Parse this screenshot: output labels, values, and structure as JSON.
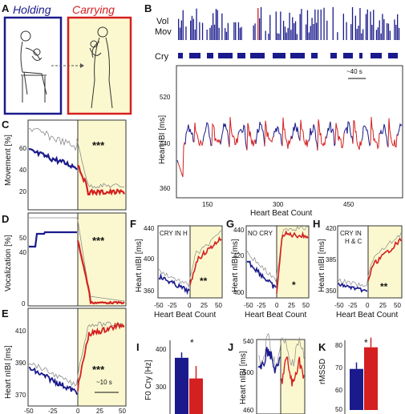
{
  "panels": {
    "A": {
      "letter": "A",
      "title_left": "Holding",
      "title_right": "Carrying"
    },
    "B": {
      "letter": "B",
      "label_vol": "Vol",
      "label_mov": "Mov",
      "label_cry": "Cry",
      "scale": "~40 s",
      "ylabel": "Heart IBI [ms]",
      "xlabel": "Heart Beat Count",
      "yticks": [
        "520",
        "440",
        "360"
      ],
      "xticks": [
        "150",
        "300",
        "450"
      ]
    },
    "C": {
      "letter": "C",
      "ylabel": "Movement [%]",
      "yticks": [
        "60",
        "40",
        "20"
      ],
      "sig": "***"
    },
    "D": {
      "letter": "D",
      "ylabel": "Vocalization [%]",
      "yticks": [
        "50",
        "40",
        "0"
      ],
      "sig": "***"
    },
    "E": {
      "letter": "E",
      "ylabel": "Heart nIBI [ms]",
      "yticks": [
        "410",
        "390",
        "370"
      ],
      "sig": "***",
      "scale": "~10 s",
      "xticks": [
        "-50",
        "-25",
        "0",
        "25",
        "50"
      ]
    },
    "F": {
      "letter": "F",
      "inset": "CRY IN H",
      "ylabel": "Heart nIBI [ms]",
      "yticks": [
        "440",
        "400",
        "360"
      ],
      "xticks": [
        "-50",
        "-25",
        "0",
        "25",
        "50"
      ],
      "xlabel": "Heart Beat Count",
      "sig": "**"
    },
    "G": {
      "letter": "G",
      "inset": "NO CRY",
      "ylabel": "Heart nIBI [ms]",
      "yticks": [
        "440",
        "420",
        "400"
      ],
      "xticks": [
        "-50",
        "-25",
        "0",
        "25",
        "50"
      ],
      "xlabel": "Heart Beat Count",
      "sig": "*"
    },
    "H": {
      "letter": "H",
      "inset_1": "CRY IN",
      "inset_2": "H & C",
      "ylabel": "Heart nIBI [ms]",
      "yticks": [
        "420",
        "385",
        "350"
      ],
      "xticks": [
        "-50",
        "-25",
        "0",
        "25",
        "50"
      ],
      "xlabel": "Heart Beat Count",
      "sig": "**"
    },
    "I": {
      "letter": "I",
      "ylabel": "F0 Cry [Hz]",
      "yticks": [
        "400",
        "300"
      ],
      "sig": "*"
    },
    "J": {
      "letter": "J",
      "ylabel": "Heart nIBI [ms]",
      "yticks": [
        "540",
        "500",
        "460"
      ]
    },
    "K": {
      "letter": "K",
      "ylabel": "rMSSD",
      "yticks": [
        "80",
        "70",
        "60",
        "50"
      ],
      "sig": "*"
    }
  },
  "colors": {
    "holding": "#1a1a8c",
    "carrying": "#d42020",
    "shade": "#fbf8cf",
    "grey": "#8a8a8a"
  },
  "chart_data": [
    {
      "panel": "I",
      "type": "bar",
      "categories": [
        "Holding",
        "Carrying"
      ],
      "values": [
        378,
        320
      ],
      "errors": [
        15,
        35
      ],
      "ylabel": "F0 Cry [Hz]"
    },
    {
      "panel": "K",
      "type": "bar",
      "categories": [
        "Holding",
        "Carrying"
      ],
      "values": [
        69,
        79
      ],
      "errors": [
        3,
        4.5
      ],
      "ylabel": "rMSSD",
      "ylim": [
        50,
        80
      ]
    }
  ]
}
